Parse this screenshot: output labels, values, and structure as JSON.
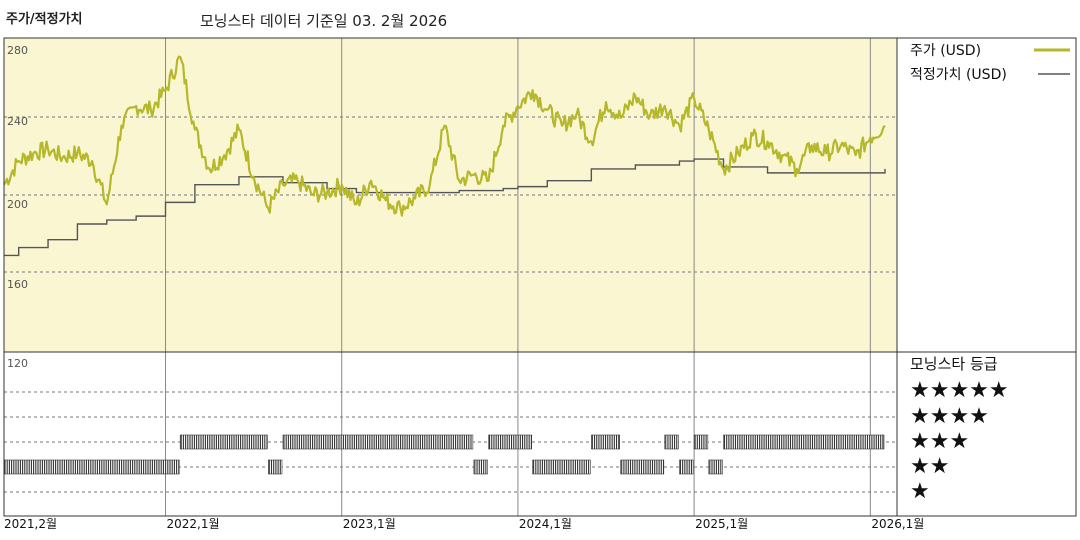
{
  "header": {
    "left_label": "주가/적정가치",
    "title": "모닝스타 데이터 기준일 03. 2월 2026"
  },
  "colors": {
    "price": "#b5b82a",
    "fair_value": "#555555",
    "price_area_bg": "#faf6d2",
    "rating_bar": "#333333"
  },
  "chart_data": {
    "type": "line",
    "x_start": "2021-02",
    "x_end": "2026-02",
    "x_ticks": [
      "2021,2월",
      "2022,1월",
      "2023,1월",
      "2024,1월",
      "2025,1월",
      "2026,1월"
    ],
    "y_ticks": [
      "280",
      "240",
      "200",
      "160",
      "120"
    ],
    "ylim": [
      120,
      280
    ],
    "grid": true,
    "legend_position": "right",
    "series": [
      {
        "name": "주가 (USD)",
        "color": "#b5b82a",
        "x": [
          "2021-02",
          "2021-03",
          "2021-04",
          "2021-05",
          "2021-06",
          "2021-07",
          "2021-08",
          "2021-09",
          "2021-10",
          "2021-11",
          "2021-12",
          "2022-01",
          "2022-02",
          "2022-03",
          "2022-04",
          "2022-05",
          "2022-06",
          "2022-07",
          "2022-08",
          "2022-09",
          "2022-10",
          "2022-11",
          "2022-12",
          "2023-01",
          "2023-02",
          "2023-03",
          "2023-04",
          "2023-05",
          "2023-06",
          "2023-07",
          "2023-08",
          "2023-09",
          "2023-10",
          "2023-11",
          "2023-12",
          "2024-01",
          "2024-02",
          "2024-03",
          "2024-04",
          "2024-05",
          "2024-06",
          "2024-07",
          "2024-08",
          "2024-09",
          "2024-10",
          "2024-11",
          "2024-12",
          "2025-01",
          "2025-02",
          "2025-03",
          "2025-04",
          "2025-05",
          "2025-06",
          "2025-07",
          "2025-08",
          "2025-09",
          "2025-10",
          "2025-11",
          "2025-12",
          "2026-01",
          "2026-02"
        ],
        "values": [
          210,
          222,
          226,
          228,
          224,
          226,
          222,
          200,
          240,
          250,
          248,
          258,
          275,
          238,
          218,
          225,
          238,
          214,
          198,
          210,
          212,
          205,
          206,
          210,
          200,
          212,
          202,
          198,
          203,
          210,
          240,
          212,
          215,
          212,
          240,
          250,
          258,
          248,
          240,
          246,
          232,
          252,
          244,
          255,
          245,
          250,
          240,
          254,
          238,
          218,
          226,
          235,
          232,
          225,
          218,
          230,
          226,
          230,
          225,
          234,
          240
        ]
      },
      {
        "name": "적정가치 (USD)",
        "color": "#555555",
        "x": [
          "2021-02",
          "2021-03",
          "2021-05",
          "2021-07",
          "2021-09",
          "2021-11",
          "2022-01",
          "2022-03",
          "2022-06",
          "2022-09",
          "2022-12",
          "2023-02",
          "2023-05",
          "2023-09",
          "2023-12",
          "2024-01",
          "2024-03",
          "2024-06",
          "2024-09",
          "2024-12",
          "2025-01",
          "2025-03",
          "2025-06",
          "2025-09",
          "2025-12",
          "2026-01",
          "2026-02"
        ],
        "values": [
          174,
          178,
          182,
          190,
          192,
          194,
          201,
          210,
          214,
          211,
          208,
          206,
          206,
          207,
          208,
          209,
          212,
          218,
          220,
          222,
          223,
          219,
          216,
          216,
          216,
          216,
          218
        ]
      }
    ],
    "rating": {
      "title": "모닝스타 등급",
      "levels": [
        "★★★★★",
        "★★★★",
        "★★★",
        "★★",
        "★"
      ],
      "segments": [
        {
          "start": "2021-02",
          "end": "2022-02",
          "stars": 2
        },
        {
          "start": "2022-02",
          "end": "2022-08",
          "stars": 3
        },
        {
          "start": "2022-08",
          "end": "2022-09",
          "stars": 2
        },
        {
          "start": "2022-09",
          "end": "2023-10",
          "stars": 3
        },
        {
          "start": "2023-10",
          "end": "2023-11",
          "stars": 2
        },
        {
          "start": "2023-11",
          "end": "2024-02",
          "stars": 3
        },
        {
          "start": "2024-02",
          "end": "2024-06",
          "stars": 2
        },
        {
          "start": "2024-06",
          "end": "2024-08",
          "stars": 3
        },
        {
          "start": "2024-08",
          "end": "2024-11",
          "stars": 2
        },
        {
          "start": "2024-11",
          "end": "2024-12",
          "stars": 3
        },
        {
          "start": "2024-12",
          "end": "2025-01",
          "stars": 2
        },
        {
          "start": "2025-01",
          "end": "2025-02",
          "stars": 3
        },
        {
          "start": "2025-02",
          "end": "2025-03",
          "stars": 2
        },
        {
          "start": "2025-03",
          "end": "2026-02",
          "stars": 3
        }
      ]
    }
  }
}
